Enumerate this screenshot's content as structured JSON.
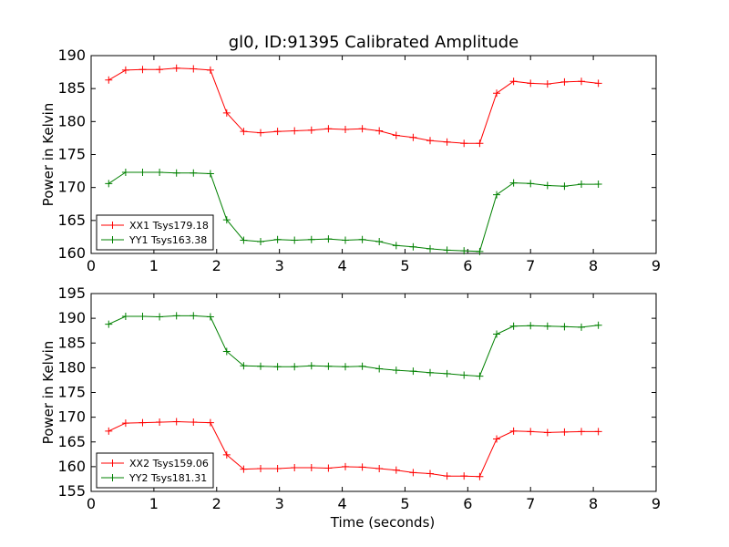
{
  "chart_data": [
    {
      "type": "line",
      "title": "gl0, ID:91395 Calibrated Amplitude",
      "xlabel": "",
      "ylabel": "Power in Kelvin",
      "xlim": [
        0,
        9
      ],
      "ylim": [
        160,
        190
      ],
      "xticks": [
        "0",
        "1",
        "2",
        "3",
        "4",
        "5",
        "6",
        "7",
        "8",
        "9"
      ],
      "yticks": [
        "160",
        "165",
        "170",
        "175",
        "180",
        "185",
        "190"
      ],
      "grid": false,
      "legend": "lower-left",
      "x": [
        0.28,
        0.55,
        0.82,
        1.09,
        1.36,
        1.63,
        1.9,
        2.16,
        2.43,
        2.7,
        2.97,
        3.24,
        3.51,
        3.78,
        4.05,
        4.32,
        4.59,
        4.86,
        5.13,
        5.4,
        5.67,
        5.94,
        6.19,
        6.46,
        6.73,
        7.0,
        7.27,
        7.54,
        7.81,
        8.08
      ],
      "series": [
        {
          "name": "XX1 Tsys179.18",
          "color": "#ff0000",
          "values": [
            186.3,
            187.8,
            187.9,
            187.9,
            188.1,
            188.0,
            187.8,
            181.3,
            178.5,
            178.3,
            178.5,
            178.6,
            178.7,
            178.9,
            178.8,
            178.9,
            178.6,
            177.9,
            177.6,
            177.1,
            176.9,
            176.7,
            176.7,
            184.3,
            186.1,
            185.8,
            185.7,
            186.0,
            186.1,
            185.8
          ]
        },
        {
          "name": "YY1 Tsys163.38",
          "color": "#008000",
          "values": [
            170.6,
            172.3,
            172.3,
            172.3,
            172.2,
            172.2,
            172.1,
            165.1,
            162.0,
            161.8,
            162.1,
            162.0,
            162.1,
            162.2,
            162.0,
            162.1,
            161.8,
            161.2,
            161.0,
            160.7,
            160.5,
            160.4,
            160.3,
            168.9,
            170.7,
            170.6,
            170.3,
            170.2,
            170.5,
            170.5
          ]
        }
      ]
    },
    {
      "type": "line",
      "title": "",
      "xlabel": "Time (seconds)",
      "ylabel": "Power in Kelvin",
      "xlim": [
        0,
        9
      ],
      "ylim": [
        155,
        195
      ],
      "xticks": [
        "0",
        "1",
        "2",
        "3",
        "4",
        "5",
        "6",
        "7",
        "8",
        "9"
      ],
      "yticks": [
        "155",
        "160",
        "165",
        "170",
        "175",
        "180",
        "185",
        "190",
        "195"
      ],
      "grid": false,
      "legend": "lower-left",
      "x": [
        0.28,
        0.55,
        0.82,
        1.09,
        1.36,
        1.63,
        1.9,
        2.16,
        2.43,
        2.7,
        2.97,
        3.24,
        3.51,
        3.78,
        4.05,
        4.32,
        4.59,
        4.86,
        5.13,
        5.4,
        5.67,
        5.94,
        6.19,
        6.46,
        6.73,
        7.0,
        7.27,
        7.54,
        7.81,
        8.08
      ],
      "series": [
        {
          "name": "XX2 Tsys159.06",
          "color": "#ff0000",
          "values": [
            167.2,
            168.8,
            168.9,
            169.0,
            169.1,
            169.0,
            168.9,
            162.4,
            159.5,
            159.6,
            159.6,
            159.8,
            159.8,
            159.7,
            160.0,
            159.9,
            159.6,
            159.3,
            158.8,
            158.6,
            158.1,
            158.1,
            158.0,
            165.6,
            167.2,
            167.1,
            166.9,
            167.0,
            167.1,
            167.1
          ]
        },
        {
          "name": "YY2 Tsys181.31",
          "color": "#008000",
          "values": [
            188.8,
            190.4,
            190.4,
            190.3,
            190.5,
            190.5,
            190.3,
            183.3,
            180.4,
            180.3,
            180.2,
            180.2,
            180.4,
            180.3,
            180.2,
            180.3,
            179.8,
            179.5,
            179.3,
            179.0,
            178.8,
            178.5,
            178.3,
            186.8,
            188.4,
            188.5,
            188.4,
            188.3,
            188.2,
            188.6
          ]
        }
      ]
    }
  ]
}
